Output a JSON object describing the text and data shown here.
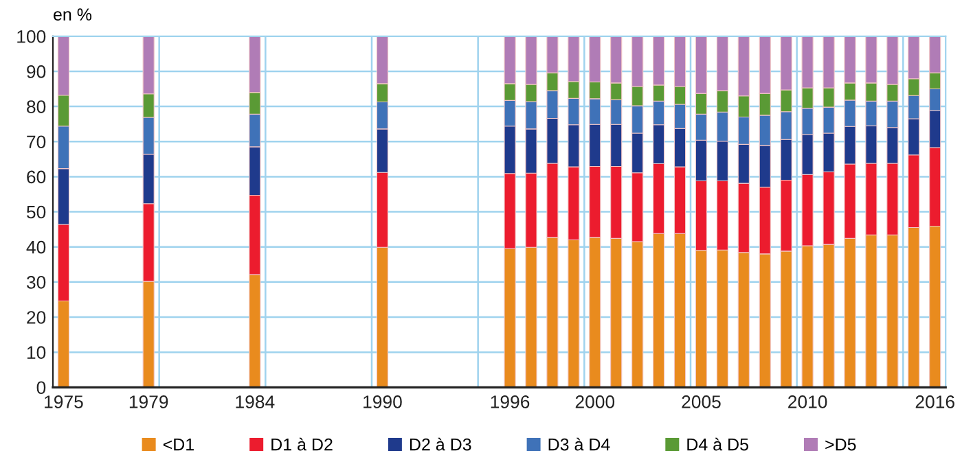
{
  "chart_data": {
    "type": "bar",
    "stacked": true,
    "ylabel": "en %",
    "x": [
      1975,
      1979,
      1984,
      1990,
      1996,
      1997,
      1998,
      1999,
      2000,
      2001,
      2002,
      2003,
      2004,
      2005,
      2006,
      2007,
      2008,
      2009,
      2010,
      2011,
      2012,
      2013,
      2014,
      2015,
      2016
    ],
    "series": [
      {
        "name": "<D1",
        "color": "#e98b1e",
        "values": [
          24.6,
          30.2,
          32.1,
          39.9,
          39.5,
          39.9,
          42.7,
          42.0,
          42.7,
          42.4,
          41.5,
          43.8,
          43.8,
          39.0,
          39.1,
          38.4,
          38.0,
          38.8,
          40.3,
          40.7,
          42.4,
          43.4,
          43.4,
          45.5,
          45.9
        ]
      },
      {
        "name": "D1 à D2",
        "color": "#ec1c2e",
        "values": [
          21.8,
          22.1,
          22.6,
          21.3,
          21.4,
          21.1,
          21.1,
          20.8,
          20.2,
          20.5,
          19.6,
          19.9,
          19.0,
          19.8,
          19.7,
          19.7,
          19.0,
          20.2,
          20.3,
          20.7,
          21.2,
          20.4,
          20.4,
          20.7,
          22.4
        ]
      },
      {
        "name": "D2 à D3",
        "color": "#1f3a8c",
        "values": [
          15.9,
          14.1,
          13.8,
          12.4,
          13.5,
          12.6,
          12.8,
          12.0,
          12.0,
          12.0,
          11.3,
          11.1,
          10.9,
          11.6,
          11.3,
          11.1,
          11.9,
          11.6,
          11.4,
          11.0,
          10.7,
          10.7,
          10.2,
          10.3,
          10.5
        ]
      },
      {
        "name": "D3 à D4",
        "color": "#3f72b8",
        "values": [
          12.1,
          10.5,
          9.3,
          7.7,
          7.3,
          7.8,
          7.9,
          7.5,
          7.3,
          7.0,
          7.8,
          6.7,
          6.9,
          7.4,
          8.3,
          7.8,
          8.6,
          7.9,
          7.5,
          7.4,
          7.5,
          7.0,
          7.5,
          6.6,
          6.2
        ]
      },
      {
        "name": "D4 à D5",
        "color": "#5a9a35",
        "values": [
          8.8,
          6.7,
          6.2,
          5.2,
          4.8,
          4.9,
          5.1,
          4.8,
          4.8,
          4.8,
          5.5,
          4.6,
          5.1,
          5.9,
          6.1,
          6.0,
          6.2,
          6.2,
          5.8,
          5.5,
          4.9,
          5.2,
          4.8,
          4.8,
          4.6
        ]
      },
      {
        "name": ">D5",
        "color": "#b07cb6",
        "values": [
          16.8,
          16.4,
          16.0,
          13.5,
          13.5,
          13.7,
          10.4,
          12.9,
          13.0,
          13.3,
          14.3,
          13.9,
          14.3,
          16.3,
          15.5,
          17.0,
          16.3,
          15.3,
          14.7,
          14.7,
          13.3,
          13.3,
          13.7,
          12.1,
          10.4
        ]
      }
    ],
    "xlim": [
      1974.5,
      2016.5
    ],
    "xticks": [
      1975,
      1979,
      {
        "value": 1979.5,
        "label": null
      },
      1984,
      {
        "value": 1984.5,
        "label": null
      },
      1990,
      {
        "value": 1989.5,
        "label": null
      },
      {
        "value": 1994.5,
        "label": null
      },
      1996,
      {
        "value": 1999.5,
        "label": null
      },
      2000,
      {
        "value": 2004.5,
        "label": null
      },
      2005,
      {
        "value": 2009.5,
        "label": null
      },
      2010,
      {
        "value": 2014.5,
        "label": null
      },
      2016
    ],
    "ylim": [
      0,
      100
    ],
    "yticks": [
      0,
      10,
      20,
      30,
      40,
      50,
      60,
      70,
      80,
      90,
      100
    ],
    "grid": true,
    "legend": "bottom"
  }
}
